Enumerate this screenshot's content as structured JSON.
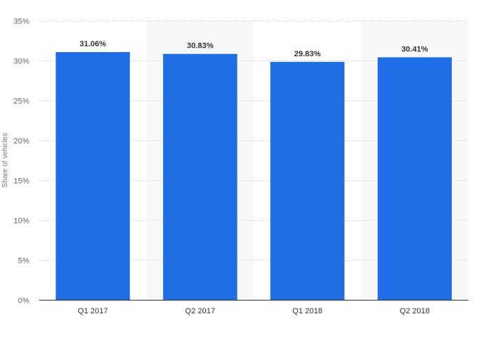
{
  "chart_data": {
    "type": "bar",
    "title": "",
    "xlabel": "",
    "ylabel": "Share of vehicles",
    "categories": [
      "Q1 2017",
      "Q2 2017",
      "Q1 2018",
      "Q2 2018"
    ],
    "values": [
      31.06,
      30.83,
      29.83,
      30.41
    ],
    "data_labels": [
      "31.06%",
      "30.83%",
      "29.83%",
      "30.41%"
    ],
    "ylim": [
      0,
      35
    ],
    "yticks": [
      0,
      5,
      10,
      15,
      20,
      25,
      30,
      35
    ],
    "ytick_labels": [
      "0%",
      "5%",
      "10%",
      "15%",
      "20%",
      "25%",
      "30%",
      "35%"
    ],
    "grid": true,
    "bar_color": "#1f6ee5",
    "band_color": "#f8f8f8"
  }
}
